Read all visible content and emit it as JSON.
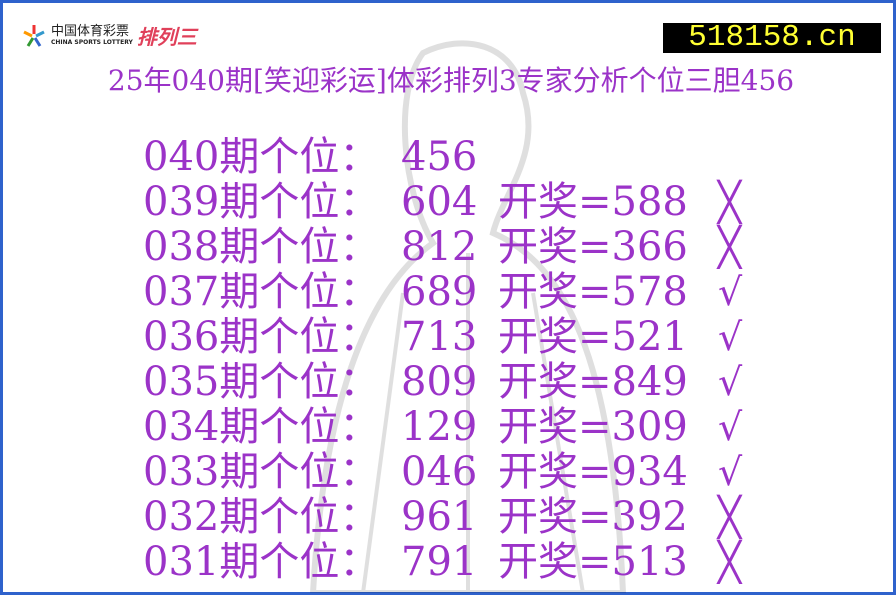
{
  "header": {
    "logo_cn": "中国体育彩票",
    "logo_en": "CHINA SPORTS LOTTERY",
    "logo_game": "排列三",
    "site": "518158.cn"
  },
  "title": "25年040期[笑迎彩运]体彩排列3专家分析个位三胆456",
  "rows": [
    {
      "period": "040期个位：",
      "pick": "456",
      "draw": "",
      "mark": ""
    },
    {
      "period": "039期个位：",
      "pick": "604",
      "draw": "开奖=588",
      "mark": "╳"
    },
    {
      "period": "038期个位：",
      "pick": "812",
      "draw": "开奖=366",
      "mark": "╳"
    },
    {
      "period": "037期个位：",
      "pick": "689",
      "draw": "开奖=578",
      "mark": "√"
    },
    {
      "period": "036期个位：",
      "pick": "713",
      "draw": "开奖=521",
      "mark": "√"
    },
    {
      "period": "035期个位：",
      "pick": "809",
      "draw": "开奖=849",
      "mark": "√"
    },
    {
      "period": "034期个位：",
      "pick": "129",
      "draw": "开奖=309",
      "mark": "√"
    },
    {
      "period": "033期个位：",
      "pick": "046",
      "draw": "开奖=934",
      "mark": "√"
    },
    {
      "period": "032期个位：",
      "pick": "961",
      "draw": "开奖=392",
      "mark": "╳"
    },
    {
      "period": "031期个位：",
      "pick": "791",
      "draw": "开奖=513",
      "mark": "╳"
    }
  ],
  "colors": {
    "text": "#9b33c8",
    "border": "#2f62cc",
    "site_bg": "#000000",
    "site_text": "#ffff33"
  }
}
